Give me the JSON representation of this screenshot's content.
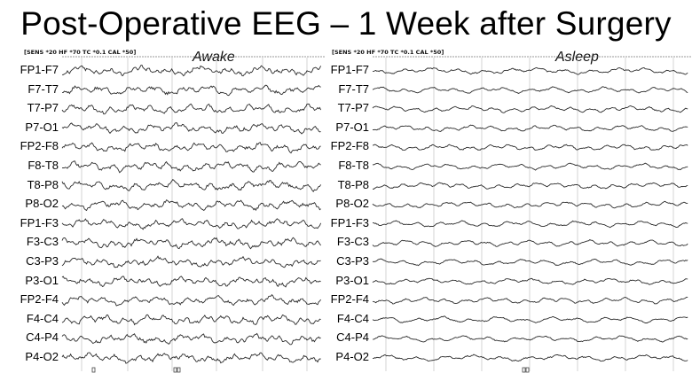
{
  "title": "Post-Operative EEG – 1 Week after Surgery",
  "panels": [
    {
      "id": "awake",
      "header": "[SENS *20  HF *70  TC *0.1  CAL *50]",
      "state": "Awake"
    },
    {
      "id": "asleep",
      "header": "[SENS *20  HF *70  TC *0.1  CAL *50]",
      "state": "Asleep"
    }
  ],
  "channels": [
    "FP1-F7",
    "F7-T7",
    "T7-P7",
    "P7-O1",
    "FP2-F8",
    "F8-T8",
    "T8-P8",
    "P8-O2",
    "FP1-F3",
    "F3-C3",
    "C3-P3",
    "P3-O1",
    "FP2-F4",
    "F4-C4",
    "C4-P4",
    "P4-O2"
  ],
  "colors": {
    "trace": "#2a2a2a",
    "grid": "#c9c9c9"
  }
}
